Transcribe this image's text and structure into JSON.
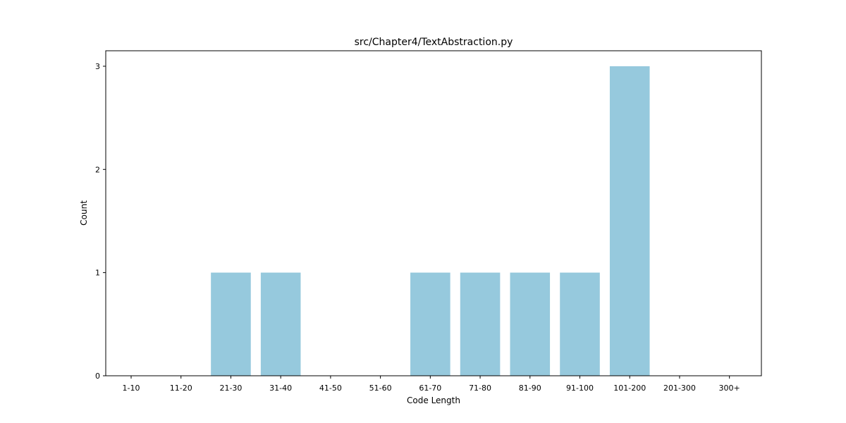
{
  "chart_data": {
    "type": "bar",
    "title": "src/Chapter4/TextAbstraction.py",
    "xlabel": "Code Length",
    "ylabel": "Count",
    "categories": [
      "1-10",
      "11-20",
      "21-30",
      "31-40",
      "41-50",
      "51-60",
      "61-70",
      "71-80",
      "81-90",
      "91-100",
      "101-200",
      "201-300",
      "300+"
    ],
    "values": [
      0,
      0,
      1,
      1,
      0,
      0,
      1,
      1,
      1,
      1,
      3,
      0,
      0
    ],
    "ylim": [
      0,
      3.15
    ],
    "yticks": [
      0,
      1,
      2,
      3
    ],
    "grid": false,
    "bar_color": "#96c9dd"
  }
}
